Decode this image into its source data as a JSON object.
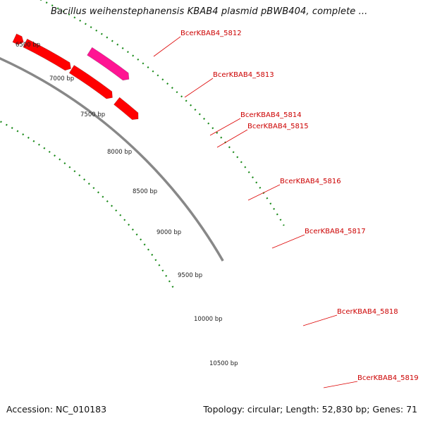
{
  "title": "Bacillus weihenstephanensis KBAB4 plasmid pBWB404, complete ...",
  "accession": "Accession: NC_010183",
  "summary": "Topology: circular; Length: 52,830 bp; Genes: 71",
  "colors": {
    "backbone": "#888888",
    "dotted_ring": "#1a8a1a",
    "gene_red": "#ff0000",
    "gene_orange": "#ff9900",
    "gene_pink": "#ff1493",
    "gene_blue": "#0000ee",
    "gene_steelblue": "#4682b4",
    "label_red": "#cc0000"
  },
  "scale_ticks": [
    "6500 bp",
    "7000 bp",
    "7500 bp",
    "8000 bp",
    "8500 bp",
    "9000 bp",
    "9500 bp",
    "10000 bp",
    "10500 bp"
  ],
  "gene_labels": [
    "BcerKBAB4_5812",
    "BcerKBAB4_5813",
    "BcerKBAB4_5814",
    "BcerKBAB4_5815",
    "BcerKBAB4_5816",
    "BcerKBAB4_5817",
    "BcerKBAB4_5818",
    "BcerKBAB4_5819"
  ]
}
